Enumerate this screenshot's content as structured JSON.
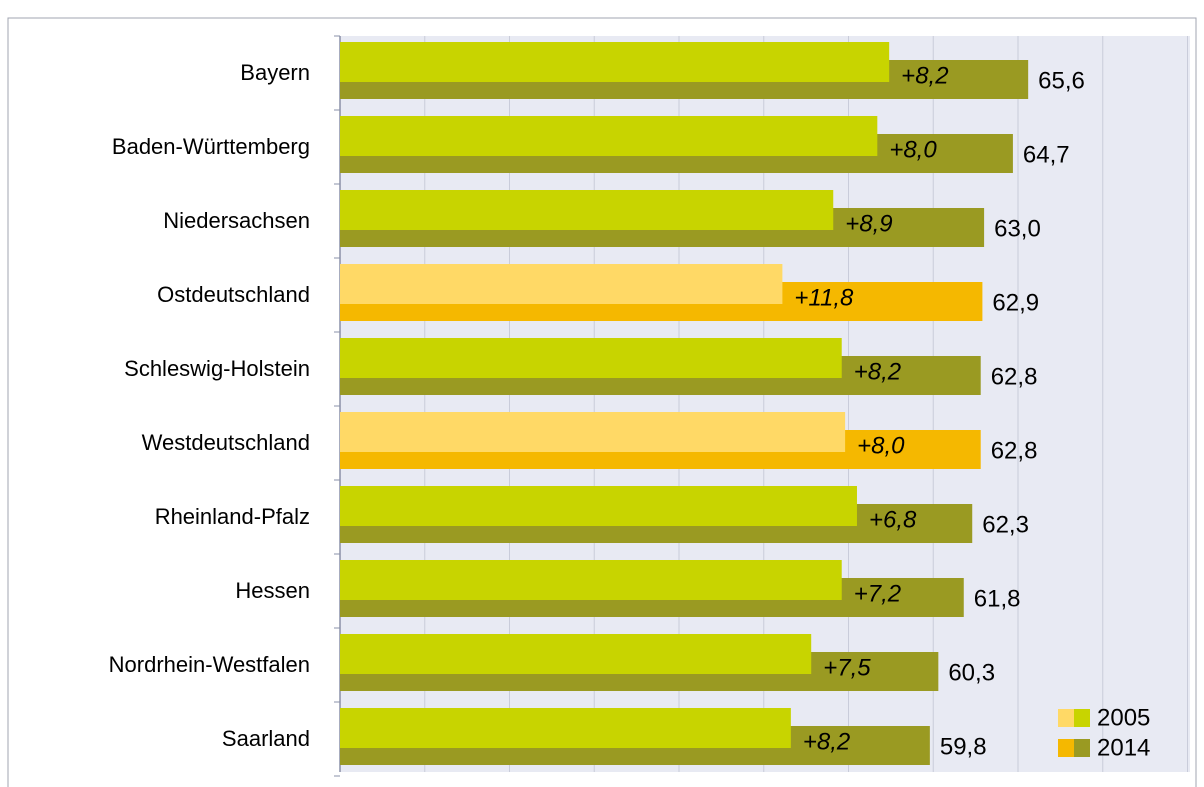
{
  "chart_data": {
    "type": "bar",
    "orientation": "horizontal",
    "categories": [
      "Bayern",
      "Baden-Württemberg",
      "Niedersachsen",
      "Ostdeutschland",
      "Schleswig-Holstein",
      "Westdeutschland",
      "Rheinland-Pfalz",
      "Hessen",
      "Nordrhein-Westfalen",
      "Saarland"
    ],
    "series": [
      {
        "name": "2005",
        "color": "#c8d400",
        "colors": [
          "#c8d400",
          "#c8d400",
          "#c8d400",
          "#ffd966",
          "#c8d400",
          "#ffd966",
          "#c8d400",
          "#c8d400",
          "#c8d400",
          "#c8d400"
        ],
        "values": [
          57.4,
          56.7,
          54.1,
          51.1,
          54.6,
          54.8,
          55.5,
          54.6,
          52.8,
          51.6
        ]
      },
      {
        "name": "2014",
        "color": "#9a9a22",
        "colors": [
          "#9a9a22",
          "#9a9a22",
          "#9a9a22",
          "#f5b800",
          "#9a9a22",
          "#f5b800",
          "#9a9a22",
          "#9a9a22",
          "#9a9a22",
          "#9a9a22"
        ],
        "values": [
          65.6,
          64.7,
          63.0,
          62.9,
          62.8,
          62.8,
          62.3,
          61.8,
          60.3,
          59.8
        ],
        "value_labels": [
          "65,6",
          "64,7",
          "63,0",
          "62,9",
          "62,8",
          "62,8",
          "62,3",
          "61,8",
          "60,3",
          "59,8"
        ]
      }
    ],
    "changes": {
      "values": [
        8.2,
        8.0,
        8.9,
        11.8,
        8.2,
        8.0,
        6.8,
        7.2,
        7.5,
        8.2
      ],
      "value_labels": [
        "+8,2",
        "+8,0",
        "+8,9",
        "+11,8",
        "+8,2",
        "+8,0",
        "+6,8",
        "+7,2",
        "+7,5",
        "+8,2"
      ]
    },
    "xlim": [
      25,
      75
    ],
    "xticks": [
      25,
      30,
      35,
      40,
      45,
      50,
      55,
      60,
      65,
      70,
      75
    ],
    "grid": true,
    "legend": "lower right"
  }
}
